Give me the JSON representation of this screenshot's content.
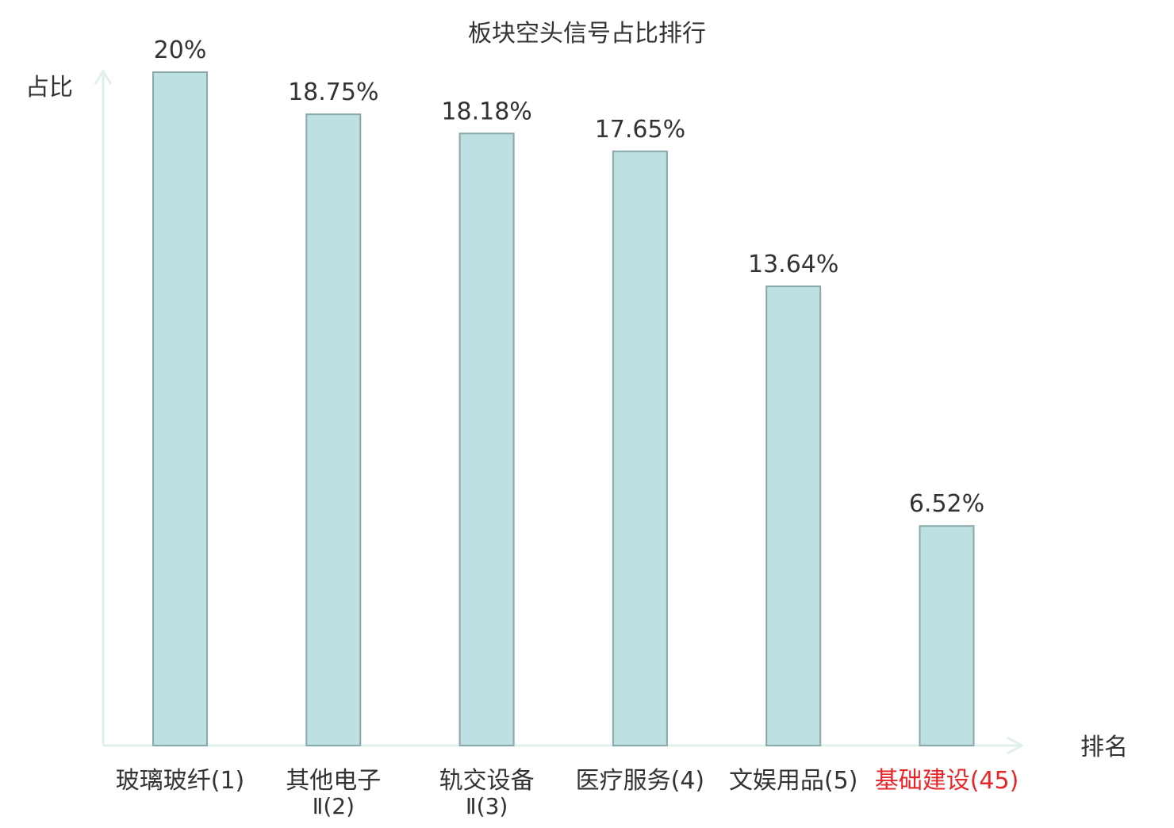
{
  "chart_data": {
    "type": "bar",
    "title": "板块空头信号占比排行",
    "xlabel": "排名",
    "ylabel": "占比",
    "ylim": [
      0,
      20
    ],
    "grid": false,
    "legend": "none",
    "categories": [
      {
        "name": "玻璃玻纤",
        "rank": "(1)",
        "line2": "",
        "highlight": false
      },
      {
        "name": "其他电子",
        "rank": "Ⅱ(2)",
        "line2": "Ⅱ(2)",
        "highlight": false
      },
      {
        "name": "轨交设备",
        "rank": "Ⅱ(3)",
        "line2": "Ⅱ(3)",
        "highlight": false
      },
      {
        "name": "医疗服务",
        "rank": "(4)",
        "line2": "",
        "highlight": false
      },
      {
        "name": "文娱用品",
        "rank": "(5)",
        "line2": "",
        "highlight": false
      },
      {
        "name": "基础建设",
        "rank": "(45)",
        "line2": "",
        "highlight": true
      }
    ],
    "values": [
      20,
      18.75,
      18.18,
      17.65,
      13.64,
      6.52
    ],
    "value_labels": [
      "20%",
      "18.75%",
      "18.18%",
      "17.65%",
      "13.64%",
      "6.52%"
    ]
  },
  "colors": {
    "bar_fill": "#bde0e2",
    "bar_stroke": "#8aa7a9",
    "axis": "#dff0ee",
    "text": "#333333",
    "highlight": "#e8262a"
  }
}
